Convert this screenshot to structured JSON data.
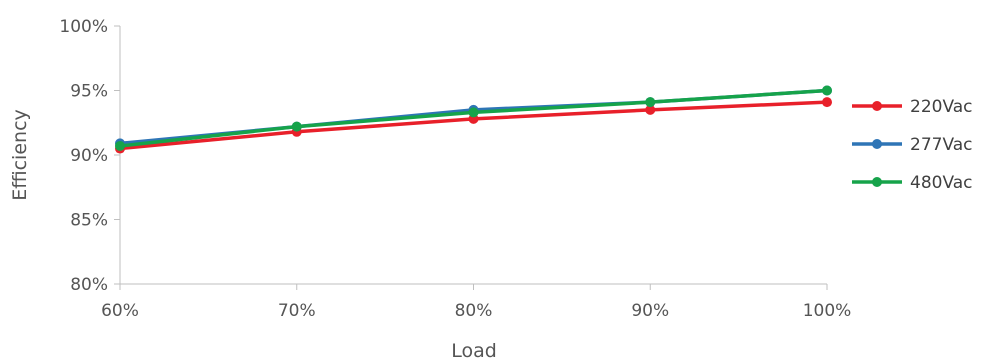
{
  "chart_data": {
    "type": "line",
    "title": "",
    "xlabel": "Load",
    "ylabel": "Efficiency",
    "categories": [
      "60%",
      "70%",
      "80%",
      "90%",
      "100%"
    ],
    "x": [
      60,
      70,
      80,
      90,
      100
    ],
    "xlim": [
      60,
      100
    ],
    "ylim": [
      80,
      100
    ],
    "y_ticks": [
      80,
      85,
      90,
      95,
      100
    ],
    "y_tick_labels": [
      "80%",
      "85%",
      "90%",
      "95%",
      "100%"
    ],
    "grid": false,
    "legend": "right",
    "series": [
      {
        "name": "220Vac",
        "color": "#e8202a",
        "values": [
          90.5,
          91.8,
          92.8,
          93.5,
          94.1
        ]
      },
      {
        "name": "277Vac",
        "color": "#2e75b6",
        "values": [
          90.9,
          92.2,
          93.5,
          94.1,
          95.0
        ]
      },
      {
        "name": "480Vac",
        "color": "#16a34a",
        "values": [
          90.7,
          92.2,
          93.3,
          94.1,
          95.0
        ]
      }
    ]
  }
}
